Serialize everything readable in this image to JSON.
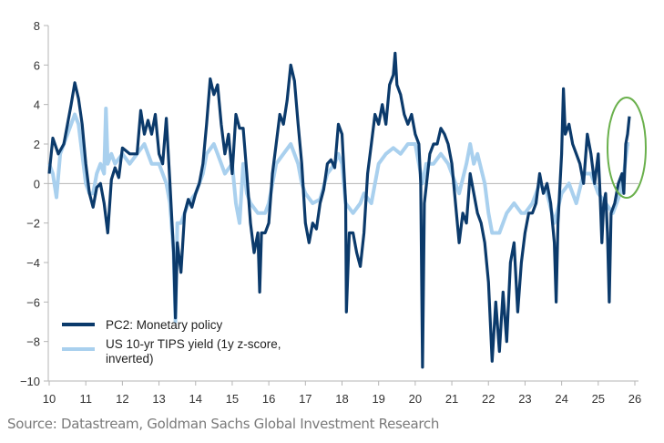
{
  "chart_data": {
    "type": "line",
    "title": "",
    "xlabel": "",
    "ylabel": "",
    "xlim": [
      10,
      26
    ],
    "ylim": [
      -10,
      8
    ],
    "x_ticks": [
      "10",
      "11",
      "12",
      "13",
      "14",
      "15",
      "16",
      "17",
      "18",
      "19",
      "20",
      "21",
      "22",
      "23",
      "24",
      "25",
      "26"
    ],
    "y_ticks": [
      "8",
      "6",
      "4",
      "2",
      "0",
      "-2",
      "-4",
      "-6",
      "-8",
      "-10"
    ],
    "grid": false,
    "zero_line": true,
    "legend_position": "bottom-left",
    "legend": [
      "PC2: Monetary policy",
      "US 10-yr TIPS yield (1y z-score,",
      "inverted)"
    ],
    "annotation": {
      "shape": "ellipse",
      "color": "#6ab04c",
      "highlights": "latest values"
    },
    "series": [
      {
        "name": "PC2: Monetary policy",
        "color": "#0b3a6b",
        "x": [
          10.0,
          10.1,
          10.25,
          10.4,
          10.5,
          10.6,
          10.7,
          10.8,
          10.9,
          11.0,
          11.1,
          11.2,
          11.3,
          11.4,
          11.5,
          11.6,
          11.7,
          11.8,
          11.9,
          12.0,
          12.2,
          12.4,
          12.5,
          12.6,
          12.7,
          12.8,
          12.9,
          13.0,
          13.1,
          13.2,
          13.3,
          13.4,
          13.45,
          13.5,
          13.6,
          13.7,
          13.8,
          13.9,
          14.0,
          14.1,
          14.2,
          14.3,
          14.4,
          14.5,
          14.6,
          14.7,
          14.8,
          14.9,
          15.0,
          15.1,
          15.2,
          15.3,
          15.4,
          15.5,
          15.6,
          15.7,
          15.75,
          15.8,
          15.9,
          16.0,
          16.1,
          16.2,
          16.3,
          16.4,
          16.5,
          16.6,
          16.7,
          16.8,
          16.9,
          17.0,
          17.1,
          17.2,
          17.3,
          17.4,
          17.5,
          17.6,
          17.7,
          17.8,
          17.9,
          18.0,
          18.1,
          18.12,
          18.2,
          18.3,
          18.4,
          18.5,
          18.6,
          18.7,
          18.8,
          18.9,
          19.0,
          19.1,
          19.2,
          19.3,
          19.4,
          19.45,
          19.5,
          19.6,
          19.7,
          19.8,
          19.9,
          20.0,
          20.1,
          20.15,
          20.2,
          20.25,
          20.4,
          20.5,
          20.6,
          20.7,
          20.8,
          20.9,
          21.0,
          21.1,
          21.2,
          21.3,
          21.4,
          21.5,
          21.6,
          21.7,
          21.8,
          21.9,
          22.0,
          22.05,
          22.1,
          22.2,
          22.3,
          22.4,
          22.5,
          22.6,
          22.7,
          22.8,
          22.9,
          23.0,
          23.1,
          23.2,
          23.3,
          23.4,
          23.5,
          23.6,
          23.7,
          23.8,
          23.85,
          23.9,
          24.0,
          24.05,
          24.1,
          24.2,
          24.3,
          24.4,
          24.5,
          24.6,
          24.7,
          24.8,
          24.9,
          25.0,
          25.05,
          25.1,
          25.15,
          25.2,
          25.25,
          25.3,
          25.35,
          25.45,
          25.55,
          25.65,
          25.7,
          25.75,
          25.8,
          25.85
        ],
        "y": [
          0.5,
          2.3,
          1.5,
          2.0,
          3.0,
          4.0,
          5.1,
          4.3,
          3.0,
          1.0,
          -0.5,
          -1.2,
          -0.2,
          0.0,
          -1.0,
          -2.5,
          0.2,
          0.8,
          0.3,
          1.8,
          1.5,
          1.5,
          3.7,
          2.5,
          3.2,
          2.5,
          3.5,
          1.5,
          1.0,
          3.3,
          0.0,
          -3.5,
          -6.8,
          -3.0,
          -4.5,
          -1.5,
          -0.8,
          -1.2,
          -0.5,
          0.0,
          1.0,
          3.0,
          5.3,
          4.5,
          5.0,
          3.0,
          1.5,
          2.5,
          0.5,
          3.5,
          2.8,
          2.8,
          0.5,
          -2.0,
          -3.5,
          -2.5,
          -5.5,
          -2.5,
          -2.5,
          -2.0,
          0.5,
          2.0,
          3.5,
          3.0,
          4.2,
          6.0,
          5.2,
          3.0,
          1.0,
          -2.0,
          -3.0,
          -2.0,
          -2.3,
          -1.0,
          -0.3,
          1.0,
          1.2,
          0.8,
          3.0,
          2.5,
          -1.0,
          -6.5,
          -2.5,
          -2.5,
          -3.5,
          -4.2,
          -2.5,
          0.5,
          2.0,
          3.5,
          3.0,
          4.0,
          3.0,
          5.0,
          5.5,
          6.6,
          5.0,
          4.5,
          3.5,
          3.0,
          3.5,
          2.5,
          2.0,
          0.0,
          -9.3,
          -1.0,
          1.5,
          2.0,
          2.0,
          2.8,
          2.5,
          2.0,
          1.0,
          -1.0,
          -3.0,
          -1.5,
          -2.0,
          0.5,
          -0.5,
          -1.5,
          -2.0,
          -3.0,
          -5.0,
          -7.0,
          -9.0,
          -6.0,
          -8.5,
          -5.5,
          -8.0,
          -4.0,
          -3.0,
          -6.5,
          -4.0,
          -2.5,
          -1.5,
          -1.5,
          -1.0,
          0.5,
          -0.5,
          0.0,
          -1.0,
          -3.0,
          -6.0,
          -2.0,
          1.5,
          4.8,
          2.5,
          3.0,
          2.0,
          1.5,
          1.0,
          0.0,
          2.5,
          1.5,
          0.0,
          1.5,
          -0.5,
          -3.0,
          -1.0,
          -0.5,
          -2.5,
          -6.0,
          -1.5,
          -1.0,
          0.0,
          0.5,
          -0.5,
          2.0,
          2.5,
          3.4
        ]
      },
      {
        "name": "US 10-yr TIPS yield (1y z-score, inverted)",
        "color": "#a9d0ee",
        "x": [
          10.0,
          10.1,
          10.2,
          10.3,
          10.5,
          10.7,
          10.8,
          10.9,
          11.0,
          11.1,
          11.2,
          11.3,
          11.4,
          11.5,
          11.55,
          11.6,
          11.7,
          11.8,
          12.0,
          12.2,
          12.4,
          12.6,
          12.8,
          13.0,
          13.2,
          13.3,
          13.4,
          13.45,
          13.5,
          13.6,
          13.8,
          14.0,
          14.2,
          14.3,
          14.5,
          14.6,
          14.8,
          15.0,
          15.1,
          15.2,
          15.3,
          15.4,
          15.5,
          15.7,
          15.9,
          16.0,
          16.2,
          16.4,
          16.6,
          16.8,
          16.9,
          17.0,
          17.2,
          17.4,
          17.6,
          17.8,
          17.9,
          18.0,
          18.1,
          18.3,
          18.5,
          18.6,
          18.8,
          19.0,
          19.2,
          19.4,
          19.6,
          19.8,
          20.0,
          20.1,
          20.2,
          20.3,
          20.5,
          20.7,
          20.9,
          21.0,
          21.2,
          21.4,
          21.5,
          21.6,
          21.7,
          21.9,
          22.0,
          22.1,
          22.3,
          22.5,
          22.7,
          22.9,
          23.0,
          23.2,
          23.4,
          23.6,
          23.8,
          24.0,
          24.2,
          24.4,
          24.6,
          24.8,
          25.0,
          25.2,
          25.4,
          25.6,
          25.7,
          25.8,
          25.85
        ],
        "y": [
          1.0,
          0.5,
          -0.7,
          1.5,
          2.5,
          3.5,
          3.0,
          1.5,
          0.0,
          -0.5,
          -0.5,
          0.5,
          1.0,
          0.5,
          3.8,
          1.0,
          1.5,
          1.0,
          1.5,
          1.0,
          1.5,
          2.0,
          1.0,
          1.0,
          0.0,
          -1.0,
          -3.5,
          -7.0,
          -2.0,
          -2.0,
          -1.0,
          -0.5,
          0.5,
          1.5,
          2.0,
          1.5,
          0.5,
          1.0,
          -1.0,
          -2.0,
          1.0,
          -0.5,
          -1.0,
          -1.5,
          -1.5,
          -1.0,
          1.0,
          1.5,
          2.0,
          1.0,
          0.0,
          -0.5,
          -1.0,
          -0.8,
          0.5,
          1.0,
          1.5,
          1.0,
          -1.0,
          -1.5,
          -1.0,
          -0.5,
          -1.0,
          1.0,
          1.5,
          1.8,
          1.5,
          2.0,
          2.0,
          1.0,
          0.0,
          1.0,
          1.0,
          1.5,
          1.0,
          0.5,
          -0.5,
          1.0,
          2.0,
          1.0,
          1.5,
          0.0,
          -1.5,
          -2.5,
          -2.5,
          -1.5,
          -1.0,
          -1.5,
          -1.5,
          -1.0,
          0.0,
          -0.5,
          -2.0,
          -0.5,
          0.0,
          -1.0,
          0.5,
          0.5,
          -0.5,
          -1.0,
          -1.5,
          -0.5,
          0.5,
          2.0,
          2.0
        ]
      }
    ]
  },
  "source": "Source: Datastream, Goldman Sachs Global Investment Research"
}
